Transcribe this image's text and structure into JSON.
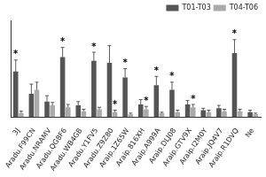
{
  "chart_data": {
    "type": "bar",
    "categories": [
      "3J",
      "Aradu.F99CN",
      "Aradu.NRAMV",
      "Aradu.QG8F6",
      "Aradu.WB4GB",
      "Aradu.Y1FV5",
      "Aradu.Z9Z80",
      "Araip.1Z65W",
      "Araip.816XH",
      "Araip.A999A",
      "Araip.DLJ08",
      "Araip.GTV9X",
      "Araip.I2M0Y",
      "Araip.JQ4V7",
      "Araip.R1DVQ",
      "Ne"
    ],
    "series": [
      {
        "name": "T01-T03",
        "color": "#555555",
        "values": [
          4.7,
          2.4,
          1.6,
          6.2,
          1.2,
          5.8,
          5.6,
          4.1,
          1.3,
          3.3,
          2.8,
          1.3,
          0.7,
          0.9,
          6.6,
          0.5
        ],
        "errors": [
          1.2,
          1.0,
          0.6,
          1.0,
          0.4,
          0.9,
          1.8,
          0.9,
          0.5,
          0.9,
          0.8,
          0.4,
          0.2,
          0.3,
          1.4,
          0.2
        ]
      },
      {
        "name": "T04-T06",
        "color": "#aaaaaa",
        "values": [
          0.4,
          2.8,
          1.2,
          1.0,
          0.6,
          0.8,
          0.5,
          0.3,
          0.8,
          0.4,
          0.5,
          1.0,
          0.5,
          0.6,
          0.6,
          0.3
        ],
        "errors": [
          0.2,
          0.8,
          0.3,
          0.3,
          0.2,
          0.2,
          0.2,
          0.1,
          0.3,
          0.1,
          0.2,
          0.3,
          0.2,
          0.2,
          0.2,
          0.1
        ]
      }
    ],
    "annotations": [
      {
        "text": "*",
        "category": "3J",
        "series": "T01-T03"
      },
      {
        "text": "*",
        "category": "Aradu.QG8F6",
        "series": "T01-T03"
      },
      {
        "text": "*",
        "category": "Aradu.Y1FV5",
        "series": "T01-T03"
      },
      {
        "text": "*",
        "category": "Aradu.Z9Z80",
        "series": "T04-T06"
      },
      {
        "text": "*",
        "category": "Araip.1Z65W",
        "series": "T01-T03"
      },
      {
        "text": "*",
        "category": "Araip.816XH",
        "series": "T04-T06"
      },
      {
        "text": "*",
        "category": "Araip.A999A",
        "series": "T01-T03"
      },
      {
        "text": "*",
        "category": "Araip.DLJ08",
        "series": "T01-T03"
      },
      {
        "text": "*",
        "category": "Araip.GTV9X",
        "series": "T04-T06"
      },
      {
        "text": "*",
        "category": "Araip.R1DVQ",
        "series": "T01-T03"
      }
    ],
    "ylim": [
      0,
      10
    ],
    "legend": "top-right",
    "grid": false,
    "tick_labels": "x"
  }
}
